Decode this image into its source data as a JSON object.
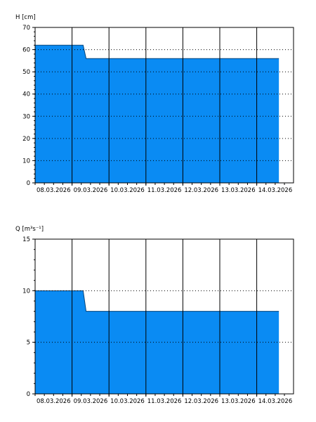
{
  "colors": {
    "fill": "#0a8bf3",
    "axis": "#000000",
    "grid": "#000000",
    "background": "#ffffff"
  },
  "dates": [
    "08.03.2026",
    "09.03.2026",
    "10.03.2026",
    "11.03.2026",
    "12.03.2026",
    "13.03.2026",
    "14.03.2026"
  ],
  "chart_data": [
    {
      "type": "area",
      "ylabel": "H [cm]",
      "ylim": [
        0,
        70
      ],
      "yticks": [
        0,
        10,
        20,
        30,
        40,
        50,
        60,
        70
      ],
      "xlim": [
        0,
        7.3
      ],
      "grid": true,
      "series": [
        {
          "x": [
            0,
            1.3,
            1.38,
            2,
            3,
            4,
            5,
            6,
            6.6
          ],
          "y": [
            62,
            62,
            56,
            56,
            56,
            56,
            56,
            56,
            56
          ]
        }
      ]
    },
    {
      "type": "area",
      "ylabel": "Q [m³s⁻¹]",
      "ylim": [
        0,
        15
      ],
      "yticks": [
        0,
        5,
        10,
        15
      ],
      "xlim": [
        0,
        7.3
      ],
      "grid": true,
      "series": [
        {
          "x": [
            0,
            1.3,
            1.38,
            2,
            3,
            4,
            5,
            6,
            6.6
          ],
          "y": [
            10,
            10,
            8,
            8,
            8,
            8,
            8,
            8,
            8
          ]
        }
      ]
    }
  ]
}
